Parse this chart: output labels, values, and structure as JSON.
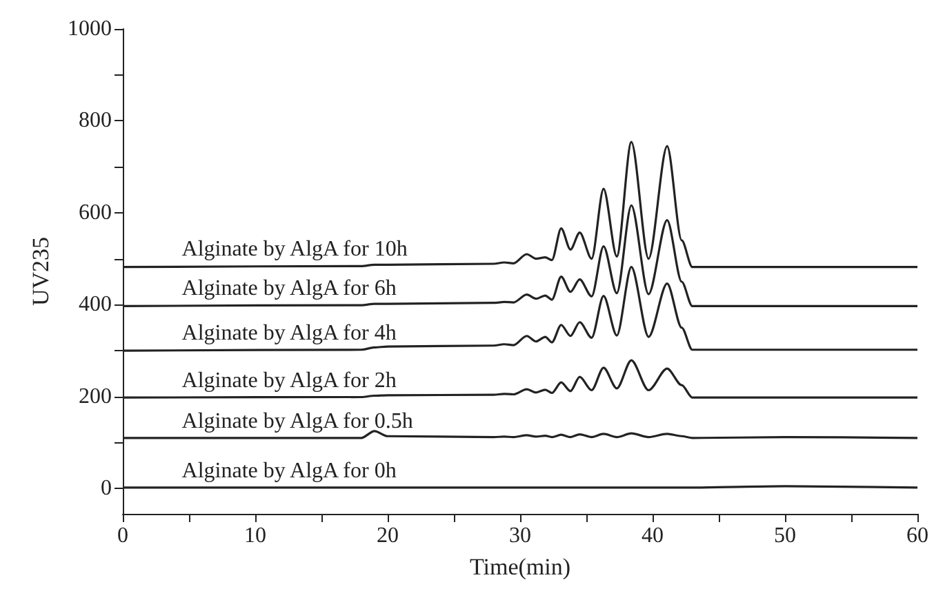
{
  "chart_data": {
    "type": "line",
    "xlabel": "Time(min)",
    "ylabel": "UV235",
    "x": [
      0,
      18,
      19,
      20,
      28,
      28.8,
      29.5,
      30.5,
      31.2,
      31.9,
      32.4,
      33.1,
      33.8,
      34.5,
      35.4,
      36.3,
      37.3,
      38.4,
      39.7,
      41.1,
      42.2,
      43,
      50,
      60
    ],
    "series": [
      {
        "name": "Alginate by AlgA for 10h",
        "color": "#222222",
        "values": [
          482,
          484,
          487,
          487,
          489,
          492,
          490,
          510,
          500,
          503,
          497,
          566,
          520,
          557,
          500,
          652,
          505,
          754,
          500,
          745,
          540,
          482,
          482,
          482
        ]
      },
      {
        "name": "Alginate by AlgA for 6h",
        "color": "#222222",
        "values": [
          397,
          399,
          402,
          402,
          404,
          406,
          405,
          422,
          413,
          420,
          411,
          461,
          428,
          455,
          418,
          527,
          425,
          616,
          423,
          584,
          450,
          397,
          397,
          397
        ]
      },
      {
        "name": "Alginate by AlgA for 4h",
        "color": "#222222",
        "values": [
          300,
          302,
          307,
          309,
          311,
          314,
          312,
          332,
          320,
          330,
          318,
          356,
          332,
          362,
          328,
          419,
          333,
          482,
          330,
          446,
          350,
          302,
          302,
          302
        ]
      },
      {
        "name": "Alginate by AlgA for 2h",
        "color": "#222222",
        "values": [
          198,
          199,
          202,
          203,
          204,
          206,
          205,
          216,
          209,
          215,
          208,
          231,
          212,
          243,
          214,
          263,
          218,
          279,
          214,
          261,
          225,
          198,
          198,
          198
        ]
      },
      {
        "name": "Alginate by AlgA for 0.5h",
        "color": "#222222",
        "values": [
          110,
          110,
          125,
          114,
          112,
          113,
          112,
          116,
          113,
          115,
          112,
          117,
          112,
          118,
          112,
          119,
          112,
          120,
          112,
          119,
          114,
          110,
          112,
          110
        ]
      },
      {
        "name": "Alginate by AlgA for 0h",
        "color": "#222222",
        "values": [
          2,
          2,
          2,
          2,
          2,
          2,
          2,
          2,
          2,
          2,
          2,
          2,
          2,
          2,
          2,
          2,
          2,
          2,
          2,
          2,
          2,
          2,
          5,
          2
        ]
      }
    ],
    "xlim": [
      0,
      60
    ],
    "xticks": [
      0,
      {
        "value": 5,
        "label": null
      },
      10,
      {
        "value": 15,
        "label": null
      },
      20,
      {
        "value": 25,
        "label": null
      },
      30,
      {
        "value": 35,
        "label": null
      },
      40,
      {
        "value": 45,
        "label": null
      },
      50,
      {
        "value": 55,
        "label": null
      },
      60
    ],
    "ylim": [
      -55,
      1000
    ],
    "yticks": [
      0,
      {
        "value": 100,
        "label": null
      },
      200,
      {
        "value": 300,
        "label": null
      },
      400,
      {
        "value": 500,
        "label": null
      },
      600,
      {
        "value": 700,
        "label": null
      },
      800,
      {
        "value": 900,
        "label": null
      },
      1000
    ],
    "grid": false,
    "legend": false,
    "marker": "none",
    "line_style": "solid"
  }
}
